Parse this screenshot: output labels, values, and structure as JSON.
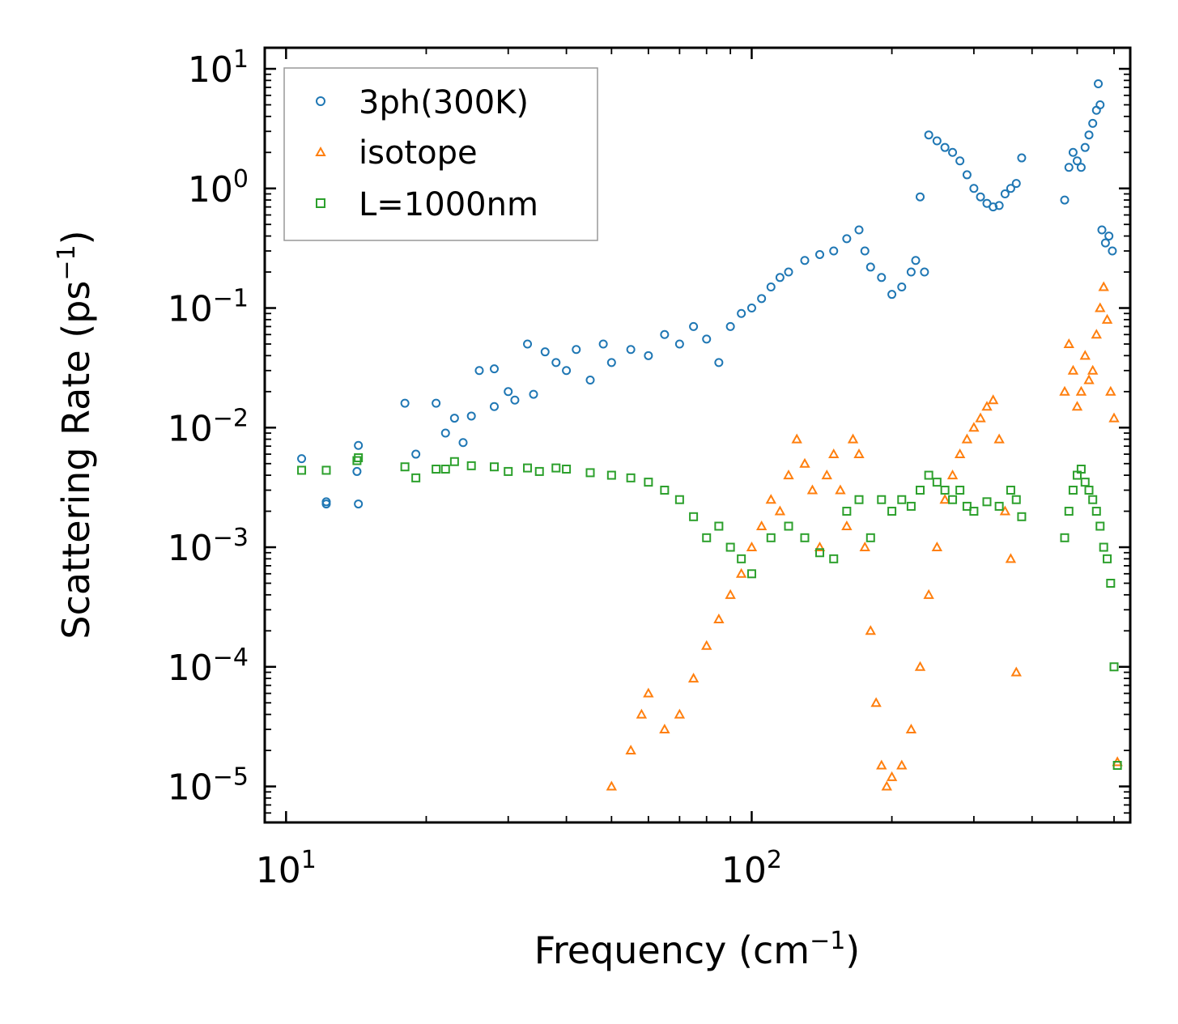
{
  "chart_data": {
    "type": "scatter",
    "xscale": "log",
    "yscale": "log",
    "xlim": [
      9,
      650
    ],
    "ylim": [
      5e-06,
      15
    ],
    "xlabel": "Frequency (cm",
    "xlabel_sup": "−1",
    "xlabel_end": ")",
    "ylabel": "Scattering Rate (ps",
    "ylabel_sup": "−1",
    "ylabel_end": ")",
    "legend_position": "top-left",
    "x_ticks": [
      {
        "value": 10,
        "base": "10",
        "exp": "1"
      },
      {
        "value": 100,
        "base": "10",
        "exp": "2"
      }
    ],
    "y_ticks": [
      {
        "value": 10,
        "base": "10",
        "exp": "1"
      },
      {
        "value": 1,
        "base": "10",
        "exp": "0"
      },
      {
        "value": 0.1,
        "base": "10",
        "exp": "−1"
      },
      {
        "value": 0.01,
        "base": "10",
        "exp": "−2"
      },
      {
        "value": 0.001,
        "base": "10",
        "exp": "−3"
      },
      {
        "value": 0.0001,
        "base": "10",
        "exp": "−4"
      },
      {
        "value": 1e-05,
        "base": "10",
        "exp": "−5"
      }
    ],
    "series": [
      {
        "name": "3ph(300K)",
        "marker": "circle",
        "color": "#1f77b4",
        "points": [
          [
            10.8,
            0.0055
          ],
          [
            12.2,
            0.0024
          ],
          [
            12.2,
            0.0023
          ],
          [
            14.2,
            0.0043
          ],
          [
            14.3,
            0.0071
          ],
          [
            14.3,
            0.0023
          ],
          [
            18,
            0.016
          ],
          [
            19,
            0.006
          ],
          [
            21,
            0.016
          ],
          [
            22,
            0.009
          ],
          [
            23,
            0.012
          ],
          [
            24,
            0.0075
          ],
          [
            25,
            0.0125
          ],
          [
            26,
            0.03
          ],
          [
            28,
            0.031
          ],
          [
            28,
            0.015
          ],
          [
            30,
            0.02
          ],
          [
            31,
            0.017
          ],
          [
            33,
            0.05
          ],
          [
            34,
            0.019
          ],
          [
            36,
            0.043
          ],
          [
            38,
            0.035
          ],
          [
            40,
            0.03
          ],
          [
            42,
            0.045
          ],
          [
            45,
            0.025
          ],
          [
            48,
            0.05
          ],
          [
            50,
            0.035
          ],
          [
            55,
            0.045
          ],
          [
            60,
            0.04
          ],
          [
            65,
            0.06
          ],
          [
            70,
            0.05
          ],
          [
            75,
            0.07
          ],
          [
            80,
            0.055
          ],
          [
            85,
            0.035
          ],
          [
            90,
            0.07
          ],
          [
            95,
            0.09
          ],
          [
            100,
            0.1
          ],
          [
            105,
            0.12
          ],
          [
            110,
            0.15
          ],
          [
            115,
            0.18
          ],
          [
            120,
            0.2
          ],
          [
            130,
            0.25
          ],
          [
            140,
            0.28
          ],
          [
            150,
            0.3
          ],
          [
            160,
            0.38
          ],
          [
            170,
            0.45
          ],
          [
            175,
            0.3
          ],
          [
            180,
            0.22
          ],
          [
            190,
            0.18
          ],
          [
            200,
            0.13
          ],
          [
            210,
            0.15
          ],
          [
            220,
            0.2
          ],
          [
            225,
            0.25
          ],
          [
            230,
            0.85
          ],
          [
            235,
            0.2
          ],
          [
            240,
            2.8
          ],
          [
            250,
            2.5
          ],
          [
            260,
            2.2
          ],
          [
            270,
            2
          ],
          [
            280,
            1.7
          ],
          [
            290,
            1.3
          ],
          [
            300,
            1.0
          ],
          [
            310,
            0.85
          ],
          [
            320,
            0.75
          ],
          [
            330,
            0.7
          ],
          [
            340,
            0.72
          ],
          [
            350,
            0.9
          ],
          [
            360,
            1.0
          ],
          [
            370,
            1.1
          ],
          [
            380,
            1.8
          ],
          [
            470,
            0.8
          ],
          [
            480,
            1.5
          ],
          [
            490,
            2.0
          ],
          [
            500,
            1.7
          ],
          [
            510,
            1.5
          ],
          [
            520,
            2.2
          ],
          [
            530,
            2.8
          ],
          [
            540,
            3.5
          ],
          [
            550,
            4.5
          ],
          [
            555,
            7.5
          ],
          [
            560,
            5.0
          ],
          [
            565,
            0.45
          ],
          [
            575,
            0.35
          ],
          [
            585,
            0.4
          ],
          [
            595,
            0.3
          ]
        ]
      },
      {
        "name": "isotope",
        "marker": "triangle",
        "color": "#ff7f0e",
        "points": [
          [
            50,
            1e-05
          ],
          [
            55,
            2e-05
          ],
          [
            58,
            4e-05
          ],
          [
            60,
            6e-05
          ],
          [
            65,
            3e-05
          ],
          [
            70,
            4e-05
          ],
          [
            75,
            8e-05
          ],
          [
            80,
            0.00015
          ],
          [
            85,
            0.00025
          ],
          [
            90,
            0.0004
          ],
          [
            95,
            0.0006
          ],
          [
            100,
            0.001
          ],
          [
            105,
            0.0015
          ],
          [
            110,
            0.0025
          ],
          [
            115,
            0.002
          ],
          [
            120,
            0.004
          ],
          [
            125,
            0.008
          ],
          [
            130,
            0.005
          ],
          [
            135,
            0.003
          ],
          [
            140,
            0.001
          ],
          [
            145,
            0.004
          ],
          [
            150,
            0.006
          ],
          [
            155,
            0.003
          ],
          [
            160,
            0.0015
          ],
          [
            165,
            0.008
          ],
          [
            170,
            0.006
          ],
          [
            175,
            0.001
          ],
          [
            180,
            0.0002
          ],
          [
            185,
            5e-05
          ],
          [
            190,
            1.5e-05
          ],
          [
            195,
            1e-05
          ],
          [
            200,
            1.2e-05
          ],
          [
            210,
            1.5e-05
          ],
          [
            220,
            3e-05
          ],
          [
            230,
            0.0001
          ],
          [
            240,
            0.0004
          ],
          [
            250,
            0.001
          ],
          [
            260,
            0.0025
          ],
          [
            270,
            0.004
          ],
          [
            280,
            0.006
          ],
          [
            290,
            0.008
          ],
          [
            300,
            0.01
          ],
          [
            310,
            0.012
          ],
          [
            320,
            0.015
          ],
          [
            330,
            0.017
          ],
          [
            340,
            0.008
          ],
          [
            350,
            0.002
          ],
          [
            360,
            0.0008
          ],
          [
            370,
            9e-05
          ],
          [
            470,
            0.02
          ],
          [
            480,
            0.05
          ],
          [
            490,
            0.03
          ],
          [
            500,
            0.015
          ],
          [
            510,
            0.02
          ],
          [
            520,
            0.04
          ],
          [
            530,
            0.025
          ],
          [
            540,
            0.03
          ],
          [
            550,
            0.06
          ],
          [
            560,
            0.1
          ],
          [
            570,
            0.15
          ],
          [
            580,
            0.08
          ],
          [
            590,
            0.02
          ],
          [
            600,
            0.012
          ],
          [
            610,
            1.6e-05
          ]
        ]
      },
      {
        "name": "L=1000nm",
        "marker": "square",
        "color": "#2ca02c",
        "points": [
          [
            10.8,
            0.0044
          ],
          [
            12.2,
            0.0044
          ],
          [
            14.2,
            0.0053
          ],
          [
            14.3,
            0.0056
          ],
          [
            18,
            0.0047
          ],
          [
            19,
            0.0038
          ],
          [
            21,
            0.0045
          ],
          [
            22,
            0.0045
          ],
          [
            23,
            0.0052
          ],
          [
            25,
            0.0048
          ],
          [
            28,
            0.0047
          ],
          [
            30,
            0.0043
          ],
          [
            33,
            0.0046
          ],
          [
            35,
            0.0043
          ],
          [
            38,
            0.0046
          ],
          [
            40,
            0.0045
          ],
          [
            45,
            0.0042
          ],
          [
            50,
            0.004
          ],
          [
            55,
            0.0038
          ],
          [
            60,
            0.0035
          ],
          [
            65,
            0.003
          ],
          [
            70,
            0.0025
          ],
          [
            75,
            0.0018
          ],
          [
            80,
            0.0012
          ],
          [
            85,
            0.0015
          ],
          [
            90,
            0.001
          ],
          [
            95,
            0.0008
          ],
          [
            100,
            0.0006
          ],
          [
            110,
            0.0012
          ],
          [
            120,
            0.0015
          ],
          [
            130,
            0.0012
          ],
          [
            140,
            0.0009
          ],
          [
            150,
            0.0008
          ],
          [
            160,
            0.002
          ],
          [
            170,
            0.0025
          ],
          [
            180,
            0.0012
          ],
          [
            190,
            0.0025
          ],
          [
            200,
            0.002
          ],
          [
            210,
            0.0025
          ],
          [
            220,
            0.0022
          ],
          [
            230,
            0.003
          ],
          [
            240,
            0.004
          ],
          [
            250,
            0.0035
          ],
          [
            260,
            0.003
          ],
          [
            270,
            0.0025
          ],
          [
            280,
            0.003
          ],
          [
            290,
            0.0022
          ],
          [
            300,
            0.002
          ],
          [
            320,
            0.0024
          ],
          [
            340,
            0.0022
          ],
          [
            360,
            0.003
          ],
          [
            370,
            0.0025
          ],
          [
            380,
            0.0018
          ],
          [
            470,
            0.0012
          ],
          [
            480,
            0.002
          ],
          [
            490,
            0.003
          ],
          [
            500,
            0.004
          ],
          [
            510,
            0.0045
          ],
          [
            520,
            0.0035
          ],
          [
            530,
            0.003
          ],
          [
            540,
            0.0025
          ],
          [
            550,
            0.002
          ],
          [
            560,
            0.0015
          ],
          [
            570,
            0.001
          ],
          [
            580,
            0.0008
          ],
          [
            590,
            0.0005
          ],
          [
            600,
            0.0001
          ],
          [
            610,
            1.5e-05
          ]
        ]
      }
    ]
  }
}
